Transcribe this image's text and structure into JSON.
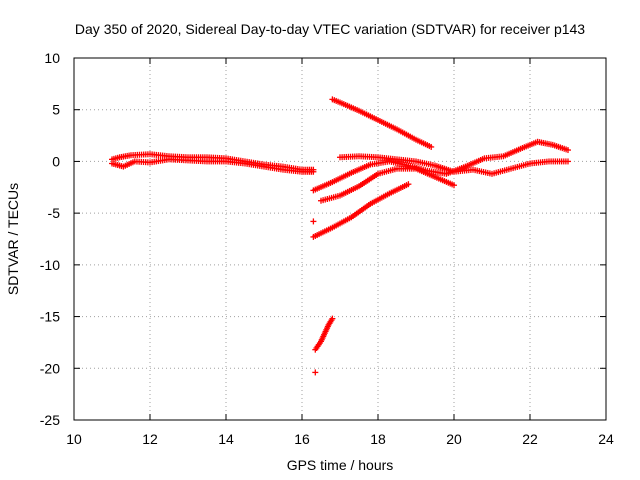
{
  "chart_data": {
    "type": "scatter",
    "title": "Day 350 of 2020, Sidereal Day-to-day VTEC variation (SDTVAR) for receiver p143",
    "xlabel": "GPS time / hours",
    "ylabel": "SDTVAR / TECUs",
    "xlim": [
      10,
      24
    ],
    "ylim": [
      -25,
      10
    ],
    "xticks": [
      10,
      12,
      14,
      16,
      18,
      20,
      22,
      24
    ],
    "yticks": [
      10,
      5,
      0,
      -5,
      -10,
      -15,
      -20,
      -25
    ],
    "grid": true,
    "marker": "+",
    "color": "#ff0000",
    "series": [
      {
        "x": [
          11.0,
          11.2,
          11.5,
          12.0,
          12.5,
          13.0,
          13.5,
          14.0,
          14.5,
          15.0,
          15.5,
          16.0,
          16.3
        ],
        "y": [
          0.2,
          0.4,
          0.6,
          0.7,
          0.5,
          0.4,
          0.4,
          0.3,
          0.0,
          -0.3,
          -0.5,
          -0.8,
          -0.8
        ]
      },
      {
        "x": [
          11.0,
          11.3,
          11.6,
          12.0,
          12.5,
          13.0,
          13.5,
          14.0,
          14.5,
          15.0,
          15.5,
          16.0,
          16.3
        ],
        "y": [
          -0.2,
          -0.5,
          0.0,
          -0.1,
          0.2,
          0.1,
          0.0,
          0.0,
          -0.2,
          -0.5,
          -0.8,
          -1.0,
          -1.0
        ]
      },
      {
        "x": [
          16.8,
          17.0,
          17.5,
          18.0,
          18.5,
          19.0,
          19.4
        ],
        "y": [
          6.0,
          5.7,
          4.9,
          4.0,
          3.1,
          2.1,
          1.4
        ]
      },
      {
        "x": [
          17.0,
          17.5,
          18.0,
          18.5,
          19.0,
          19.5,
          20.0,
          20.5,
          21.0,
          21.5,
          22.0,
          22.5,
          23.0
        ],
        "y": [
          0.4,
          0.5,
          0.4,
          0.2,
          0.0,
          -0.4,
          -1.0,
          -0.8,
          -1.2,
          -0.7,
          -0.2,
          0.0,
          0.0
        ]
      },
      {
        "x": [
          16.3,
          16.8,
          17.3,
          17.8,
          18.3,
          18.8,
          19.3,
          19.8,
          20.3,
          20.8,
          21.3,
          21.8,
          22.2,
          22.6,
          23.0
        ],
        "y": [
          -2.8,
          -2.0,
          -1.1,
          -0.3,
          0.0,
          -0.4,
          -0.9,
          -1.2,
          -0.5,
          0.3,
          0.5,
          1.3,
          1.9,
          1.6,
          1.1
        ]
      },
      {
        "x": [
          16.5,
          17.0,
          17.5,
          18.0,
          18.5,
          19.0,
          19.5,
          20.0
        ],
        "y": [
          -3.8,
          -3.3,
          -2.4,
          -1.2,
          -0.7,
          -0.7,
          -1.5,
          -2.3
        ]
      },
      {
        "x": [
          16.3,
          16.8,
          17.3,
          17.8,
          18.3,
          18.8
        ],
        "y": [
          -7.3,
          -6.4,
          -5.4,
          -4.1,
          -3.1,
          -2.2
        ]
      },
      {
        "x": [
          16.35,
          16.5,
          16.6,
          16.7,
          16.8
        ],
        "y": [
          -18.2,
          -17.4,
          -16.6,
          -15.8,
          -15.2
        ]
      },
      {
        "x": [
          16.3,
          16.35
        ],
        "y": [
          -5.8,
          -20.4
        ]
      }
    ]
  }
}
